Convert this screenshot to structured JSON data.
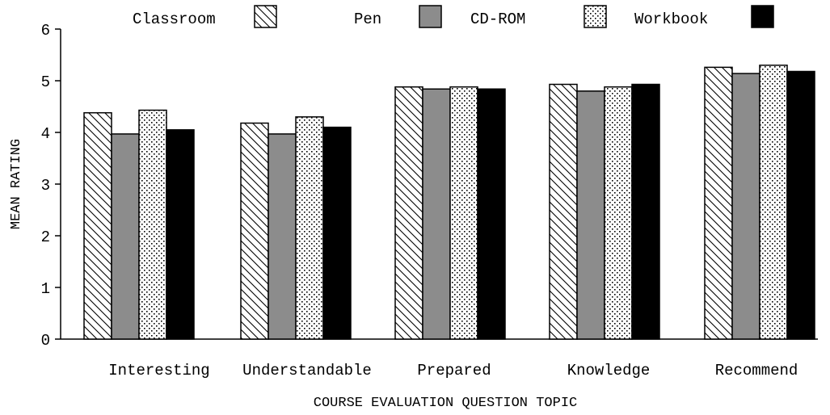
{
  "chart_data": {
    "type": "bar",
    "title": "",
    "xlabel": "COURSE EVALUATION QUESTION TOPIC",
    "ylabel": "MEAN RATING",
    "ylim": [
      0,
      6
    ],
    "yticks": [
      0,
      1,
      2,
      3,
      4,
      5,
      6
    ],
    "grid": false,
    "legend_position": "top",
    "categories": [
      "Interesting",
      "Understandable",
      "Prepared",
      "Knowledge",
      "Recommend"
    ],
    "series": [
      {
        "name": "Classroom",
        "pattern": "diagonal-hatch",
        "color": "#ffffff",
        "values": [
          4.38,
          4.18,
          4.88,
          4.93,
          5.26
        ]
      },
      {
        "name": "Pen",
        "pattern": "solid",
        "color": "#8c8c8c",
        "values": [
          3.97,
          3.97,
          4.84,
          4.8,
          5.14
        ]
      },
      {
        "name": "CD-ROM",
        "pattern": "dots",
        "color": "#ffffff",
        "values": [
          4.43,
          4.3,
          4.88,
          4.88,
          5.3
        ]
      },
      {
        "name": "Workbook",
        "pattern": "solid",
        "color": "#000000",
        "values": [
          4.05,
          4.1,
          4.84,
          4.93,
          5.18
        ]
      }
    ]
  }
}
